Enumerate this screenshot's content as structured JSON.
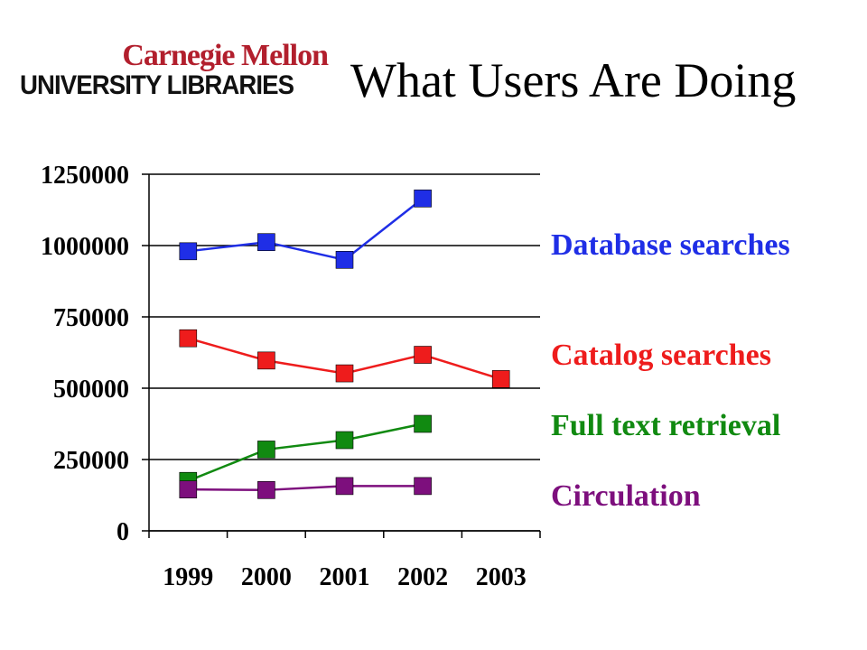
{
  "slide": {
    "title": "What Users Are Doing",
    "logo": {
      "line1": "Carnegie Mellon",
      "line2": "UNIVERSITY LIBRARIES",
      "line1_color": "#b21f2d",
      "line2_color": "#111111"
    }
  },
  "chart_data": {
    "type": "line",
    "title": "",
    "xlabel": "",
    "ylabel": "",
    "categories": [
      "1999",
      "2000",
      "2001",
      "2002",
      "2003"
    ],
    "ylim": [
      0,
      1250000
    ],
    "yticks": [
      "1250000",
      "1000000",
      "750000",
      "500000",
      "250000",
      "0"
    ],
    "ytick_values": [
      1250000,
      1000000,
      750000,
      500000,
      250000,
      0
    ],
    "grid": "horizontal",
    "legend_position": "right",
    "marker": "square",
    "series": [
      {
        "name": "Database searches",
        "color": "#1f2ee6",
        "values": [
          980000,
          1012000,
          950000,
          1165000,
          null
        ]
      },
      {
        "name": "Catalog searches",
        "color": "#ee1c1c",
        "values": [
          675000,
          597000,
          552000,
          617000,
          532000
        ]
      },
      {
        "name": "Full text retrieval",
        "color": "#118a11",
        "values": [
          175000,
          285000,
          318000,
          375000,
          null
        ]
      },
      {
        "name": "Circulation",
        "color": "#7d0f7d",
        "values": [
          145000,
          143000,
          157000,
          157000,
          null
        ]
      }
    ]
  }
}
